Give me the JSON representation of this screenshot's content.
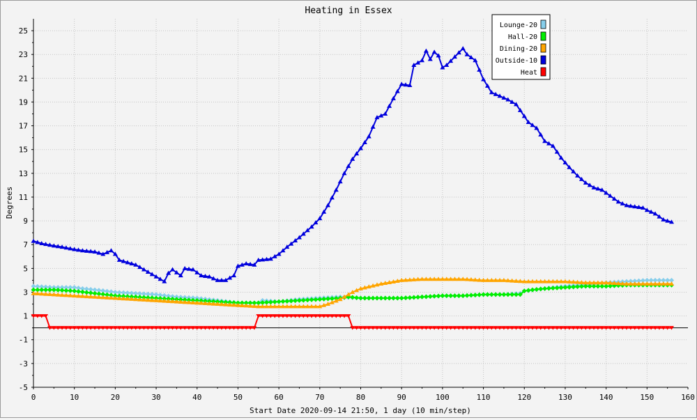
{
  "chart_data": {
    "type": "line",
    "title": "Heating in Essex",
    "xlabel": "Start Date 2020-09-14 21:50, 1 day (10 min/step)",
    "ylabel": "Degrees",
    "xlim": [
      0,
      160
    ],
    "ylim": [
      -5,
      26
    ],
    "x_ticks": [
      0,
      10,
      20,
      30,
      40,
      50,
      60,
      70,
      80,
      90,
      100,
      110,
      120,
      130,
      140,
      150,
      160
    ],
    "y_ticks": [
      -5,
      -3,
      -1,
      1,
      3,
      5,
      7,
      9,
      11,
      13,
      15,
      17,
      19,
      21,
      23,
      25
    ],
    "grid": true,
    "legend_position": "top-right",
    "series": [
      {
        "name": "Lounge-20",
        "color": "#87ceeb",
        "marker": "diamond",
        "points": [
          [
            0,
            3.5
          ],
          [
            5,
            3.4
          ],
          [
            10,
            3.4
          ],
          [
            12,
            3.3
          ],
          [
            15,
            3.2
          ],
          [
            20,
            3.0
          ],
          [
            25,
            2.9
          ],
          [
            30,
            2.8
          ],
          [
            35,
            2.6
          ],
          [
            40,
            2.5
          ],
          [
            45,
            2.3
          ],
          [
            50,
            2.1
          ],
          [
            55,
            2.1
          ],
          [
            56,
            2.3
          ],
          [
            60,
            2.2
          ],
          [
            65,
            2.4
          ],
          [
            70,
            2.5
          ],
          [
            75,
            2.6
          ],
          [
            80,
            2.5
          ],
          [
            85,
            2.5
          ],
          [
            90,
            2.5
          ],
          [
            95,
            2.6
          ],
          [
            100,
            2.7
          ],
          [
            105,
            2.7
          ],
          [
            110,
            2.8
          ],
          [
            115,
            2.8
          ],
          [
            119,
            2.9
          ],
          [
            120,
            3.1
          ],
          [
            125,
            3.3
          ],
          [
            130,
            3.5
          ],
          [
            135,
            3.6
          ],
          [
            140,
            3.8
          ],
          [
            145,
            3.9
          ],
          [
            150,
            4.0
          ],
          [
            156,
            4.0
          ]
        ]
      },
      {
        "name": "Hall-20",
        "color": "#00ee00",
        "marker": "diamond",
        "points": [
          [
            0,
            3.2
          ],
          [
            5,
            3.2
          ],
          [
            10,
            3.1
          ],
          [
            15,
            2.9
          ],
          [
            20,
            2.7
          ],
          [
            25,
            2.6
          ],
          [
            30,
            2.5
          ],
          [
            35,
            2.4
          ],
          [
            40,
            2.3
          ],
          [
            45,
            2.2
          ],
          [
            50,
            2.1
          ],
          [
            55,
            2.1
          ],
          [
            60,
            2.2
          ],
          [
            65,
            2.3
          ],
          [
            70,
            2.4
          ],
          [
            75,
            2.5
          ],
          [
            77,
            2.6
          ],
          [
            80,
            2.5
          ],
          [
            85,
            2.5
          ],
          [
            90,
            2.5
          ],
          [
            95,
            2.6
          ],
          [
            100,
            2.7
          ],
          [
            105,
            2.7
          ],
          [
            110,
            2.8
          ],
          [
            115,
            2.8
          ],
          [
            119,
            2.8
          ],
          [
            120,
            3.1
          ],
          [
            122,
            3.2
          ],
          [
            125,
            3.3
          ],
          [
            130,
            3.4
          ],
          [
            135,
            3.5
          ],
          [
            140,
            3.5
          ],
          [
            145,
            3.6
          ],
          [
            150,
            3.6
          ],
          [
            156,
            3.6
          ]
        ]
      },
      {
        "name": "Dining-20",
        "color": "#ffa500",
        "marker": "triangle-up",
        "points": [
          [
            0,
            2.9
          ],
          [
            5,
            2.8
          ],
          [
            10,
            2.7
          ],
          [
            15,
            2.6
          ],
          [
            20,
            2.5
          ],
          [
            25,
            2.4
          ],
          [
            30,
            2.3
          ],
          [
            35,
            2.2
          ],
          [
            40,
            2.1
          ],
          [
            45,
            2.0
          ],
          [
            50,
            1.9
          ],
          [
            55,
            1.8
          ],
          [
            60,
            1.8
          ],
          [
            65,
            1.8
          ],
          [
            70,
            1.8
          ],
          [
            72,
            2.0
          ],
          [
            75,
            2.4
          ],
          [
            78,
            3.0
          ],
          [
            80,
            3.3
          ],
          [
            85,
            3.7
          ],
          [
            90,
            4.0
          ],
          [
            95,
            4.1
          ],
          [
            100,
            4.1
          ],
          [
            105,
            4.1
          ],
          [
            110,
            4.0
          ],
          [
            115,
            4.0
          ],
          [
            120,
            3.9
          ],
          [
            125,
            3.9
          ],
          [
            130,
            3.9
          ],
          [
            135,
            3.8
          ],
          [
            140,
            3.8
          ],
          [
            145,
            3.7
          ],
          [
            150,
            3.7
          ],
          [
            156,
            3.7
          ]
        ]
      },
      {
        "name": "Outside-10",
        "color": "#0000dd",
        "marker": "triangle-up",
        "points": [
          [
            0,
            7.3
          ],
          [
            2,
            7.1
          ],
          [
            5,
            6.9
          ],
          [
            7,
            6.8
          ],
          [
            10,
            6.6
          ],
          [
            12,
            6.5
          ],
          [
            15,
            6.4
          ],
          [
            17,
            6.2
          ],
          [
            19,
            6.5
          ],
          [
            20,
            6.2
          ],
          [
            21,
            5.7
          ],
          [
            23,
            5.5
          ],
          [
            25,
            5.3
          ],
          [
            27,
            4.9
          ],
          [
            29,
            4.5
          ],
          [
            31,
            4.1
          ],
          [
            32,
            3.9
          ],
          [
            33,
            4.6
          ],
          [
            34,
            4.9
          ],
          [
            36,
            4.4
          ],
          [
            37,
            5.0
          ],
          [
            39,
            4.9
          ],
          [
            41,
            4.4
          ],
          [
            43,
            4.3
          ],
          [
            45,
            4.0
          ],
          [
            47,
            4.0
          ],
          [
            49,
            4.4
          ],
          [
            50,
            5.2
          ],
          [
            52,
            5.4
          ],
          [
            54,
            5.3
          ],
          [
            55,
            5.7
          ],
          [
            58,
            5.8
          ],
          [
            60,
            6.2
          ],
          [
            62,
            6.8
          ],
          [
            65,
            7.6
          ],
          [
            68,
            8.5
          ],
          [
            70,
            9.2
          ],
          [
            72,
            10.3
          ],
          [
            74,
            11.6
          ],
          [
            76,
            13.0
          ],
          [
            78,
            14.2
          ],
          [
            80,
            15.1
          ],
          [
            82,
            16.1
          ],
          [
            84,
            17.7
          ],
          [
            86,
            18.0
          ],
          [
            88,
            19.3
          ],
          [
            90,
            20.5
          ],
          [
            92,
            20.4
          ],
          [
            93,
            22.1
          ],
          [
            95,
            22.5
          ],
          [
            96,
            23.3
          ],
          [
            97,
            22.6
          ],
          [
            98,
            23.2
          ],
          [
            99,
            22.9
          ],
          [
            100,
            21.9
          ],
          [
            101,
            22.1
          ],
          [
            103,
            22.8
          ],
          [
            105,
            23.5
          ],
          [
            106,
            23.0
          ],
          [
            108,
            22.5
          ],
          [
            110,
            20.9
          ],
          [
            112,
            19.8
          ],
          [
            114,
            19.5
          ],
          [
            116,
            19.2
          ],
          [
            118,
            18.8
          ],
          [
            119,
            18.3
          ],
          [
            121,
            17.3
          ],
          [
            123,
            16.8
          ],
          [
            125,
            15.7
          ],
          [
            127,
            15.3
          ],
          [
            129,
            14.3
          ],
          [
            131,
            13.5
          ],
          [
            133,
            12.8
          ],
          [
            135,
            12.2
          ],
          [
            137,
            11.8
          ],
          [
            139,
            11.6
          ],
          [
            141,
            11.1
          ],
          [
            143,
            10.6
          ],
          [
            145,
            10.3
          ],
          [
            147,
            10.2
          ],
          [
            149,
            10.1
          ],
          [
            150,
            9.9
          ],
          [
            152,
            9.6
          ],
          [
            154,
            9.1
          ],
          [
            156,
            8.9
          ]
        ]
      },
      {
        "name": "Heat",
        "color": "#ff0000",
        "marker": "triangle-down",
        "points": [
          [
            0,
            1
          ],
          [
            3,
            1
          ],
          [
            4,
            0
          ],
          [
            54,
            0
          ],
          [
            55,
            1
          ],
          [
            77,
            1
          ],
          [
            78,
            0
          ],
          [
            156,
            0
          ]
        ]
      }
    ]
  }
}
